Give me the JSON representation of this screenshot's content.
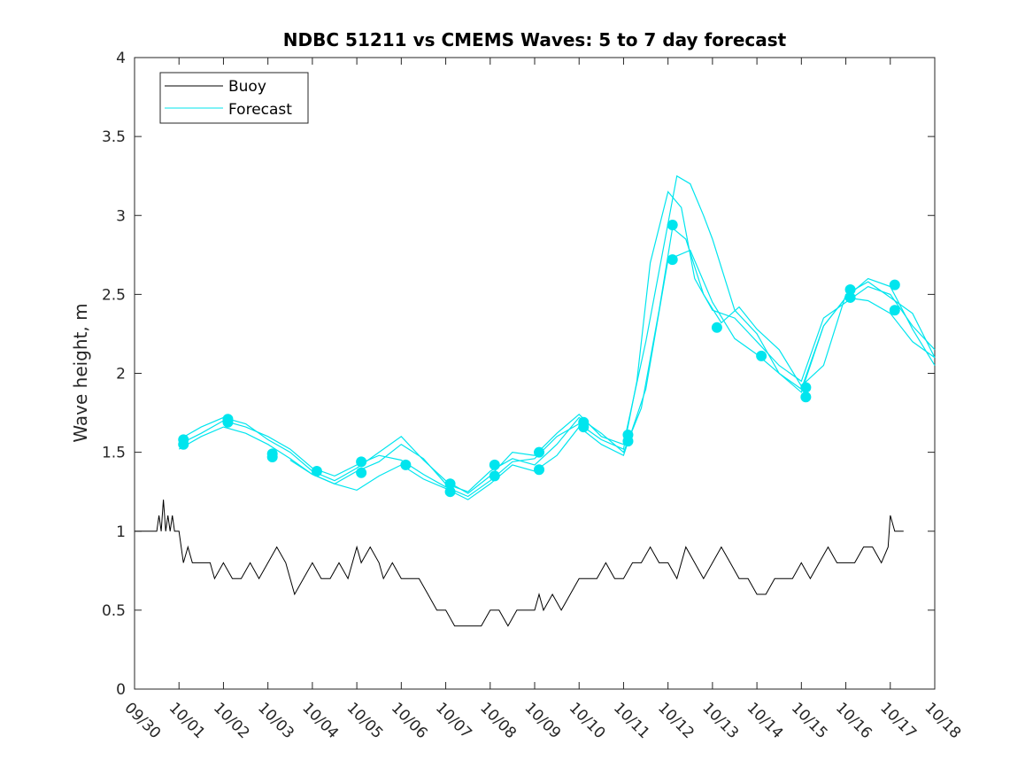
{
  "chart_data": {
    "type": "line",
    "title": "NDBC 51211 vs CMEMS Waves: 5 to 7 day forecast",
    "xlabel": "",
    "ylabel": "Wave height, m",
    "x_ticks": [
      "09/30",
      "10/01",
      "10/02",
      "10/03",
      "10/04",
      "10/05",
      "10/06",
      "10/07",
      "10/08",
      "10/09",
      "10/10",
      "10/11",
      "10/12",
      "10/13",
      "10/14",
      "10/15",
      "10/16",
      "10/17",
      "10/18"
    ],
    "y_ticks": [
      "0",
      "0.5",
      "1",
      "1.5",
      "2",
      "2.5",
      "3",
      "3.5",
      "4"
    ],
    "xlim_days": [
      0,
      18
    ],
    "ylim": [
      0,
      4
    ],
    "grid": false,
    "legend": {
      "position": "top-left",
      "entries": [
        {
          "label": "Buoy",
          "color": "#000000"
        },
        {
          "label": "Forecast",
          "color": "#00e5ee"
        }
      ]
    },
    "colors": {
      "buoy": "#000000",
      "forecast": "#00e5ee",
      "axes": "#262626"
    },
    "series": [
      {
        "name": "Buoy",
        "x": [
          0.0,
          0.5,
          0.55,
          0.6,
          0.65,
          0.7,
          0.75,
          0.8,
          0.85,
          0.9,
          1.0,
          1.1,
          1.2,
          1.3,
          1.5,
          1.7,
          1.8,
          2.0,
          2.2,
          2.4,
          2.6,
          2.8,
          3.0,
          3.2,
          3.4,
          3.5,
          3.6,
          3.8,
          4.0,
          4.2,
          4.4,
          4.6,
          4.8,
          5.0,
          5.1,
          5.3,
          5.5,
          5.6,
          5.8,
          6.0,
          6.2,
          6.4,
          6.6,
          6.8,
          7.0,
          7.2,
          7.4,
          7.6,
          7.8,
          8.0,
          8.2,
          8.4,
          8.6,
          8.8,
          9.0,
          9.1,
          9.2,
          9.4,
          9.6,
          9.8,
          10.0,
          10.2,
          10.4,
          10.6,
          10.8,
          11.0,
          11.2,
          11.4,
          11.6,
          11.8,
          12.0,
          12.2,
          12.4,
          12.6,
          12.8,
          13.0,
          13.2,
          13.4,
          13.6,
          13.8,
          14.0,
          14.2,
          14.4,
          14.6,
          14.8,
          15.0,
          15.2,
          15.4,
          15.6,
          15.8,
          16.0,
          16.2,
          16.4,
          16.6,
          16.8,
          16.95,
          17.0,
          17.1,
          17.2,
          17.3
        ],
        "y": [
          1.0,
          1.0,
          1.1,
          1.0,
          1.2,
          1.0,
          1.1,
          1.0,
          1.1,
          1.0,
          1.0,
          0.8,
          0.9,
          0.8,
          0.8,
          0.8,
          0.7,
          0.8,
          0.7,
          0.7,
          0.8,
          0.7,
          0.8,
          0.9,
          0.8,
          0.7,
          0.6,
          0.7,
          0.8,
          0.7,
          0.7,
          0.8,
          0.7,
          0.9,
          0.8,
          0.9,
          0.8,
          0.7,
          0.8,
          0.7,
          0.7,
          0.7,
          0.6,
          0.5,
          0.5,
          0.4,
          0.4,
          0.4,
          0.4,
          0.5,
          0.5,
          0.4,
          0.5,
          0.5,
          0.5,
          0.6,
          0.5,
          0.6,
          0.5,
          0.6,
          0.7,
          0.7,
          0.7,
          0.8,
          0.7,
          0.7,
          0.8,
          0.8,
          0.9,
          0.8,
          0.8,
          0.7,
          0.9,
          0.8,
          0.7,
          0.8,
          0.9,
          0.8,
          0.7,
          0.7,
          0.6,
          0.6,
          0.7,
          0.7,
          0.7,
          0.8,
          0.7,
          0.8,
          0.9,
          0.8,
          0.8,
          0.8,
          0.9,
          0.9,
          0.8,
          0.9,
          1.1,
          1.0,
          1.0,
          1.0
        ]
      },
      {
        "name": "Forecast",
        "x": [
          1.0,
          1.5,
          2.0,
          2.5,
          3.0,
          3.5,
          4.0,
          4.5,
          5.0,
          5.5,
          6.0,
          6.5,
          7.0,
          7.5,
          8.0,
          8.5,
          9.0,
          9.5,
          10.0,
          10.5,
          11.0,
          11.3,
          11.6,
          12.0,
          12.3,
          12.6,
          13.0,
          13.5,
          14.0,
          14.5,
          15.0,
          15.5,
          16.0,
          16.5,
          17.0,
          17.5,
          18.0
        ],
        "y": [
          1.55,
          1.62,
          1.7,
          1.66,
          1.6,
          1.52,
          1.4,
          1.35,
          1.42,
          1.48,
          1.45,
          1.36,
          1.28,
          1.22,
          1.32,
          1.44,
          1.46,
          1.6,
          1.68,
          1.58,
          1.52,
          1.95,
          2.7,
          3.15,
          3.05,
          2.6,
          2.4,
          2.35,
          2.2,
          2.05,
          1.95,
          2.35,
          2.45,
          2.55,
          2.5,
          2.3,
          2.15
        ]
      },
      {
        "name": "",
        "x": [
          1.0,
          1.5,
          2.0,
          2.5,
          3.0,
          3.5,
          4.0,
          4.5,
          5.0,
          5.5,
          6.0,
          6.5,
          7.0,
          7.5,
          8.0,
          8.5,
          9.0,
          9.5,
          10.0,
          10.5,
          11.0,
          11.4,
          11.8,
          12.1,
          12.4,
          12.8,
          13.2,
          13.6,
          14.0,
          14.5,
          15.0,
          15.5,
          16.0,
          16.5,
          17.0,
          17.5,
          18.0
        ],
        "y": [
          1.52,
          1.6,
          1.66,
          1.62,
          1.55,
          1.46,
          1.36,
          1.3,
          1.38,
          1.44,
          1.55,
          1.46,
          1.3,
          1.25,
          1.38,
          1.46,
          1.42,
          1.55,
          1.72,
          1.62,
          1.5,
          1.78,
          2.4,
          2.92,
          2.85,
          2.5,
          2.32,
          2.42,
          2.28,
          2.15,
          1.92,
          2.05,
          2.5,
          2.58,
          2.48,
          2.38,
          2.1
        ]
      },
      {
        "name": "",
        "x": [
          1.0,
          1.5,
          2.0,
          2.5,
          3.0,
          3.5,
          4.0,
          4.5,
          5.0,
          5.5,
          6.0,
          6.5,
          7.0,
          7.5,
          8.0,
          8.5,
          9.0,
          9.5,
          10.0,
          10.5,
          11.0,
          11.5,
          12.0,
          12.2,
          12.5,
          12.8,
          13.0,
          13.5,
          14.0,
          14.5,
          15.0,
          15.5,
          16.0,
          16.5,
          17.0,
          17.5,
          18.0
        ],
        "y": [
          1.58,
          1.66,
          1.72,
          1.68,
          1.58,
          1.5,
          1.38,
          1.32,
          1.4,
          1.5,
          1.6,
          1.45,
          1.32,
          1.24,
          1.35,
          1.5,
          1.48,
          1.62,
          1.74,
          1.6,
          1.55,
          2.2,
          2.95,
          3.25,
          3.2,
          3.0,
          2.85,
          2.4,
          2.25,
          2.0,
          1.88,
          2.3,
          2.48,
          2.6,
          2.55,
          2.28,
          2.05
        ]
      },
      {
        "name": "",
        "x": [
          3.5,
          4.0,
          4.5,
          5.0,
          5.5,
          6.0,
          6.5,
          7.0,
          7.5,
          8.0,
          8.5,
          9.0,
          9.5,
          10.0,
          10.5,
          11.0,
          11.5,
          12.0,
          12.5,
          13.0,
          13.5,
          14.0,
          14.5,
          15.0,
          15.5,
          16.0,
          16.5,
          17.0,
          17.5,
          18.0
        ],
        "y": [
          1.45,
          1.36,
          1.3,
          1.26,
          1.35,
          1.42,
          1.33,
          1.27,
          1.2,
          1.3,
          1.42,
          1.38,
          1.48,
          1.66,
          1.55,
          1.48,
          1.9,
          2.72,
          2.78,
          2.45,
          2.22,
          2.12,
          2.0,
          1.9,
          2.3,
          2.48,
          2.46,
          2.38,
          2.2,
          2.1
        ]
      }
    ],
    "markers": {
      "name": "",
      "x": [
        1.1,
        1.1,
        2.1,
        2.1,
        3.1,
        3.1,
        4.1,
        5.1,
        5.1,
        6.1,
        7.1,
        7.1,
        8.1,
        8.1,
        9.1,
        9.1,
        10.1,
        10.1,
        11.1,
        11.1,
        12.1,
        12.1,
        13.1,
        14.1,
        15.1,
        15.1,
        16.1,
        16.1,
        17.1,
        17.1
      ],
      "y": [
        1.58,
        1.55,
        1.71,
        1.69,
        1.49,
        1.47,
        1.38,
        1.44,
        1.37,
        1.42,
        1.3,
        1.25,
        1.42,
        1.35,
        1.5,
        1.39,
        1.69,
        1.66,
        1.61,
        1.57,
        2.94,
        2.72,
        2.29,
        2.11,
        1.91,
        1.85,
        2.53,
        2.48,
        2.56,
        2.4
      ]
    }
  }
}
